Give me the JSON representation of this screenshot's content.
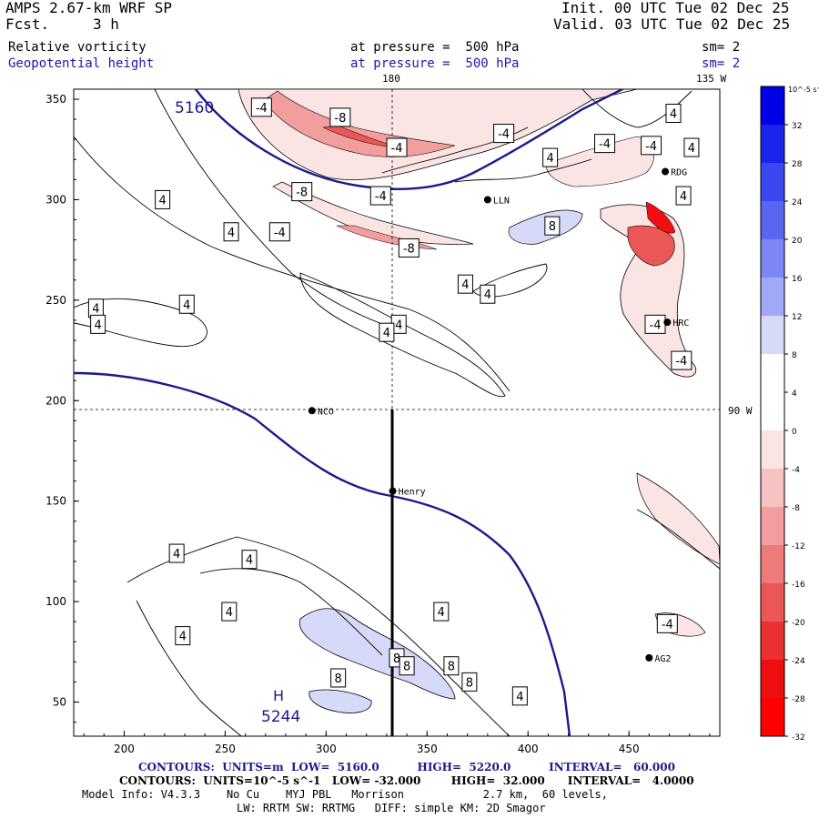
{
  "header": {
    "model": "AMPS 2.67-km WRF SP",
    "fcst_label": "Fcst.",
    "fcst_value": "3 h",
    "init_line": "Init. 00 UTC Tue 02 Dec 25",
    "valid_line": "Valid. 03 UTC Tue 02 Dec 25",
    "field1_name": "Relative vorticity",
    "field1_level": "at pressure =  500 hPa",
    "field1_smooth": "sm= 2",
    "field2_name": "Geopotential height",
    "field2_level": "at pressure =  500 hPa",
    "field2_smooth": "sm= 2"
  },
  "map_labels": {
    "lon_180": "180",
    "lon_135w": "135 W",
    "lat_90w": "90 W"
  },
  "stations": [
    {
      "name": "NCO",
      "x": 293,
      "y": 195
    },
    {
      "name": "Henry",
      "x": 333,
      "y": 155
    },
    {
      "name": "AG2",
      "x": 460,
      "y": 72
    },
    {
      "name": "HRC",
      "x": 469,
      "y": 239
    },
    {
      "name": "RDG",
      "x": 468,
      "y": 314
    },
    {
      "name": "LLN",
      "x": 380,
      "y": 300
    }
  ],
  "height_labels": {
    "low_contour": "5160",
    "high_mark": "H",
    "high_value": "5244"
  },
  "colorbar": {
    "unit_label": "10^-5 s^-1",
    "ticks": [
      "32",
      "28",
      "24",
      "20",
      "16",
      "12",
      "8",
      "4",
      "0",
      "-4",
      "-8",
      "-12",
      "-16",
      "-20",
      "-24",
      "-28",
      "-32"
    ],
    "colors": [
      "#0000e6",
      "#1a24ec",
      "#3b48f0",
      "#5a66f2",
      "#7c86f5",
      "#a0a8f8",
      "#d6daf8",
      "#ffffff",
      "#ffffff",
      "#fbe4e4",
      "#f7c2c2",
      "#f39e9e",
      "#ef7a7a",
      "#eb5656",
      "#ea3030",
      "#ee1010",
      "#ff0000"
    ]
  },
  "footer": {
    "line1": "CONTOURS:  UNITS=m  LOW=  5160.0          HIGH=  5220.0          INTERVAL=   60.000",
    "line2": "CONTOURS:  UNITS=10^-5 s^-1   LOW= -32.000        HIGH=  32.000      INTERVAL=   4.0000",
    "line3": "Model Info: V4.3.3    No Cu    MYJ PBL   Morrison            2.7 km,  60 levels,",
    "line4": "LW: RRTM SW: RRTMG   DIFF: simple KM: 2D Smagor"
  },
  "chart_data": {
    "type": "contour-map",
    "title": "Relative vorticity and Geopotential height at 500 hPa",
    "xlabel": "",
    "ylabel": "",
    "xlim": [
      175,
      495
    ],
    "ylim": [
      33,
      355
    ],
    "xticks": [
      200,
      250,
      300,
      350,
      400,
      450
    ],
    "yticks": [
      50,
      100,
      150,
      200,
      250,
      300,
      350
    ],
    "geopotential_contours_m": [
      5160,
      5220
    ],
    "vorticity_range": [
      -32,
      32
    ],
    "vorticity_interval": 4,
    "contour_labels": [
      {
        "v": "-4",
        "x": 268,
        "y": 346
      },
      {
        "v": "-8",
        "x": 307,
        "y": 341
      },
      {
        "v": "-4",
        "x": 335,
        "y": 326
      },
      {
        "v": "-4",
        "x": 388,
        "y": 333
      },
      {
        "v": "4",
        "x": 411,
        "y": 321
      },
      {
        "v": "-4",
        "x": 438,
        "y": 328
      },
      {
        "v": "4",
        "x": 472,
        "y": 343
      },
      {
        "v": "-4",
        "x": 461,
        "y": 327
      },
      {
        "v": "4",
        "x": 481,
        "y": 326
      },
      {
        "v": "4",
        "x": 477,
        "y": 302
      },
      {
        "v": "-8",
        "x": 288,
        "y": 304
      },
      {
        "v": "-4",
        "x": 327,
        "y": 302
      },
      {
        "v": "4",
        "x": 219,
        "y": 300
      },
      {
        "v": "4",
        "x": 253,
        "y": 284
      },
      {
        "v": "-4",
        "x": 277,
        "y": 284
      },
      {
        "v": "-8",
        "x": 341,
        "y": 276
      },
      {
        "v": "8",
        "x": 412,
        "y": 287
      },
      {
        "v": "4",
        "x": 369,
        "y": 258
      },
      {
        "v": "4",
        "x": 380,
        "y": 253
      },
      {
        "v": "4",
        "x": 186,
        "y": 246
      },
      {
        "v": "4",
        "x": 231,
        "y": 248
      },
      {
        "v": "4",
        "x": 187,
        "y": 238
      },
      {
        "v": "4",
        "x": 336,
        "y": 238
      },
      {
        "v": "4",
        "x": 330,
        "y": 234
      },
      {
        "v": "-4",
        "x": 463,
        "y": 238
      },
      {
        "v": "-4",
        "x": 476,
        "y": 220
      },
      {
        "v": "4",
        "x": 226,
        "y": 124
      },
      {
        "v": "4",
        "x": 262,
        "y": 121
      },
      {
        "v": "4",
        "x": 252,
        "y": 95
      },
      {
        "v": "4",
        "x": 229,
        "y": 83
      },
      {
        "v": "4",
        "x": 357,
        "y": 95
      },
      {
        "v": "-4",
        "x": 469,
        "y": 89
      },
      {
        "v": "8",
        "x": 335,
        "y": 72
      },
      {
        "v": "8",
        "x": 340,
        "y": 68
      },
      {
        "v": "8",
        "x": 362,
        "y": 68
      },
      {
        "v": "8",
        "x": 371,
        "y": 60
      },
      {
        "v": "8",
        "x": 306,
        "y": 62
      },
      {
        "v": "4",
        "x": 396,
        "y": 53
      }
    ]
  }
}
